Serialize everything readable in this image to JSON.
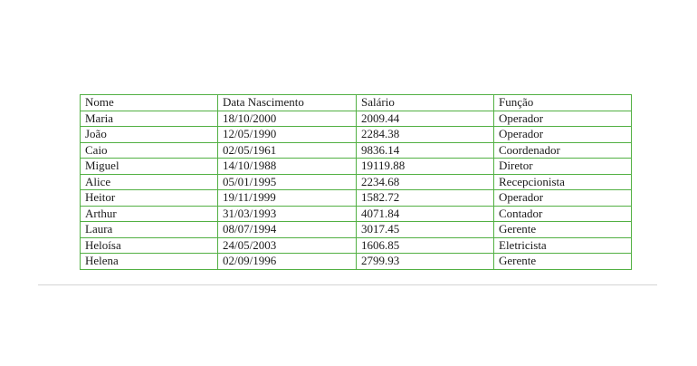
{
  "table": {
    "headers": [
      "Nome",
      "Data Nascimento",
      "Salário",
      "Função"
    ],
    "rows": [
      [
        "Maria",
        "18/10/2000",
        "2009.44",
        "Operador"
      ],
      [
        "João",
        "12/05/1990",
        "2284.38",
        "Operador"
      ],
      [
        "Caio",
        "02/05/1961",
        "9836.14",
        "Coordenador"
      ],
      [
        "Miguel",
        "14/10/1988",
        "19119.88",
        "Diretor"
      ],
      [
        "Alice",
        "05/01/1995",
        "2234.68",
        "Recepcionista"
      ],
      [
        "Heitor",
        "19/11/1999",
        "1582.72",
        "Operador"
      ],
      [
        "Arthur",
        "31/03/1993",
        "4071.84",
        "Contador"
      ],
      [
        "Laura",
        "08/07/1994",
        "3017.45",
        "Gerente"
      ],
      [
        "Heloísa",
        "24/05/2003",
        "1606.85",
        "Eletricista"
      ],
      [
        "Helena",
        "02/09/1996",
        "2799.93",
        "Gerente"
      ]
    ]
  },
  "colors": {
    "table_border": "#52b043",
    "page_edge": "#d4d4d4"
  }
}
